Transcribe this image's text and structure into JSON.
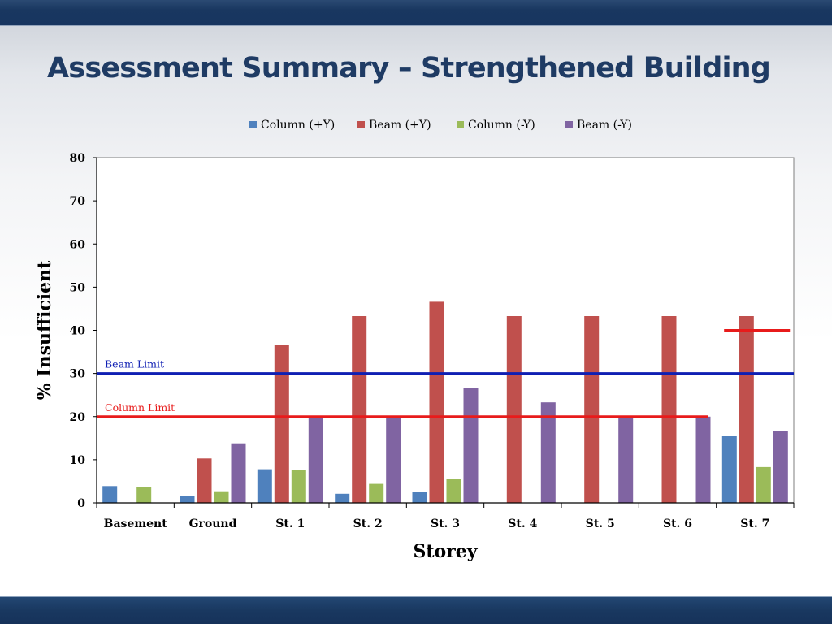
{
  "slide": {
    "title": "Assessment Summary – Strengthened Building"
  },
  "colors": {
    "top_bar": "#193760",
    "bottom_bar": "#193860",
    "title": "#1f3b64",
    "beam_limit": "#0f1fb3",
    "column_limit": "#e81b1b"
  },
  "chart_data": {
    "type": "bar",
    "xlabel": "Storey",
    "ylabel": "% Insufficient",
    "ylim": [
      0,
      80
    ],
    "yticks": [
      0,
      10,
      20,
      30,
      40,
      50,
      60,
      70,
      80
    ],
    "grid": false,
    "legend_position": "top",
    "categories": [
      "Basement",
      "Ground",
      "St. 1",
      "St. 2",
      "St. 3",
      "St. 4",
      "St. 5",
      "St. 6",
      "St. 7"
    ],
    "series": [
      {
        "name": "Column (+Y)",
        "color": "#4f81bd",
        "values": [
          3.9,
          1.5,
          7.8,
          2.1,
          2.5,
          0,
          0,
          0,
          15.5
        ]
      },
      {
        "name": "Beam (+Y)",
        "color": "#c0504d",
        "values": [
          0,
          10.3,
          36.6,
          43.3,
          46.6,
          43.3,
          43.3,
          43.3,
          43.3
        ]
      },
      {
        "name": "Column (-Y)",
        "color": "#9bbb59",
        "values": [
          3.6,
          2.7,
          7.7,
          4.4,
          5.5,
          0,
          0,
          0,
          8.3
        ]
      },
      {
        "name": "Beam (-Y)",
        "color": "#8064a2",
        "values": [
          0,
          13.8,
          20,
          20,
          26.7,
          23.3,
          20,
          20,
          16.7
        ]
      }
    ],
    "reference_lines": [
      {
        "label": "Beam Limit",
        "value": 30,
        "color": "#0f1fb3",
        "from_category": "Basement",
        "to_category": "St. 7"
      },
      {
        "label": "Column Limit",
        "value": 20,
        "color": "#e81b1b",
        "from_category": "Basement",
        "to_category": "St. 6"
      },
      {
        "label": "",
        "value": 40,
        "color": "#e81b1b",
        "from_category": "St. 7",
        "to_category": "St. 7"
      }
    ]
  }
}
